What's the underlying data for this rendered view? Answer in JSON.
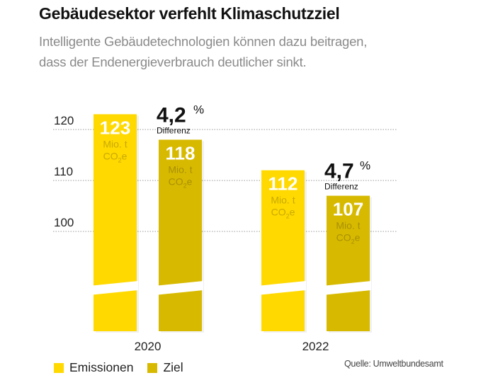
{
  "header": {
    "title": "Gebäudesektor verfehlt Klimaschutzziel",
    "subtitle_lines": [
      "Intelligente Gebäudetechnologien können dazu beitragen,",
      "dass der Endenergieverbrauch deutlicher sinkt."
    ]
  },
  "colors": {
    "emissionen": "#FFD900",
    "ziel": "#D7BA00",
    "bar_label": "#ffffff",
    "unit_label_emissionen": "#C9A900",
    "unit_label_ziel": "#A98F00",
    "gridline": "#9a9a9a"
  },
  "chart_data": {
    "type": "bar",
    "title": "Gebäudesektor verfehlt Klimaschutzziel",
    "xlabel": "",
    "ylabel": "",
    "categories": [
      "2020",
      "2022"
    ],
    "series": [
      {
        "name": "Emissionen",
        "values": [
          123,
          112
        ]
      },
      {
        "name": "Ziel",
        "values": [
          118,
          107
        ]
      }
    ],
    "unit_line1": "Mio. t",
    "unit_line2_main": "CO",
    "unit_line2_sub": "2",
    "unit_line2_end": "e",
    "yticks": [
      100,
      110,
      120
    ],
    "ylim_visible": [
      100,
      123
    ],
    "axis_break": true,
    "grid": "horizontal-dotted",
    "differences": [
      {
        "category": "2020",
        "value": "4,2",
        "unit": "%",
        "label": "Differenz"
      },
      {
        "category": "2022",
        "value": "4,7",
        "unit": "%",
        "label": "Differenz"
      }
    ],
    "legend": [
      "Emissionen",
      "Ziel"
    ],
    "legend_position": "bottom-left"
  },
  "source": "Quelle: Umweltbundesamt"
}
